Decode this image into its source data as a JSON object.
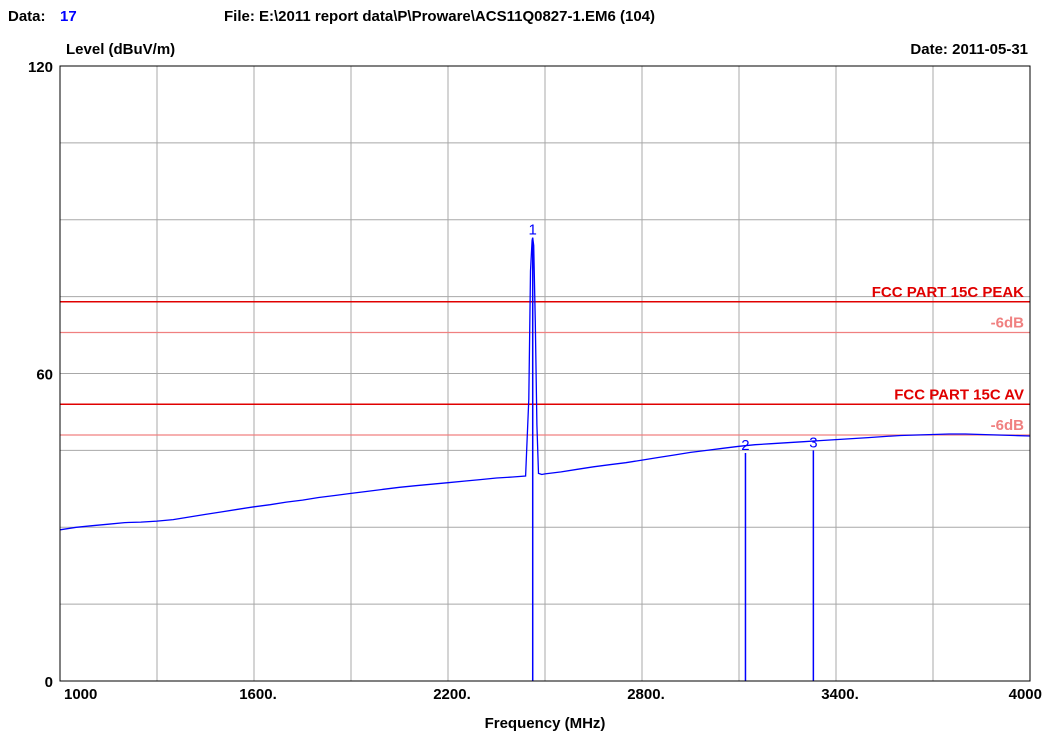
{
  "header": {
    "data_label": "Data:",
    "data_value": "17",
    "file_text": "File: E:\\2011 report data\\P\\Proware\\ACS11Q0827-1.EM6  (104)",
    "date_text": "Date: 2011-05-31"
  },
  "colors": {
    "trace": "#0000ff",
    "limit": "#e00000",
    "limit_margin": "#f08080",
    "grid": "#a8a8a8",
    "frame": "#000000"
  },
  "chart_data": {
    "type": "line",
    "title": "",
    "xlabel": "Frequency (MHz)",
    "ylabel": "Level (dBuV/m)",
    "xlim": [
      1000,
      4000
    ],
    "ylim": [
      0,
      120
    ],
    "grid": true,
    "x_ticks": [
      {
        "value": 1000,
        "label": "1000"
      },
      {
        "value": 1600,
        "label": "1600."
      },
      {
        "value": 2200,
        "label": "2200."
      },
      {
        "value": 2800,
        "label": "2800."
      },
      {
        "value": 3400,
        "label": "3400."
      },
      {
        "value": 4000,
        "label": "4000"
      }
    ],
    "y_ticks": [
      {
        "value": 0,
        "label": "0"
      },
      {
        "value": 60,
        "label": "60"
      },
      {
        "value": 120,
        "label": "120"
      }
    ],
    "limit_lines": [
      {
        "name": "FCC PART 15C  PEAK",
        "value": 74,
        "kind": "limit"
      },
      {
        "name": "-6dB",
        "value": 68,
        "kind": "margin"
      },
      {
        "name": "FCC PART 15C AV",
        "value": 54,
        "kind": "limit"
      },
      {
        "name": "-6dB",
        "value": 48,
        "kind": "margin"
      }
    ],
    "markers": [
      {
        "label": "1",
        "x": 2462,
        "y": 86.5
      },
      {
        "label": "2",
        "x": 3120,
        "y": 44.5
      },
      {
        "label": "3",
        "x": 3330,
        "y": 45
      }
    ],
    "series": [
      {
        "x": [
          1000,
          1050,
          1100,
          1150,
          1200,
          1250,
          1300,
          1350,
          1400,
          1450,
          1500,
          1550,
          1600,
          1650,
          1700,
          1750,
          1800,
          1850,
          1900,
          1950,
          2000,
          2050,
          2100,
          2150,
          2200,
          2250,
          2300,
          2350,
          2400,
          2440,
          2450,
          2455,
          2460,
          2462,
          2465,
          2470,
          2475,
          2480,
          2490,
          2500,
          2550,
          2600,
          2650,
          2700,
          2750,
          2800,
          2850,
          2900,
          2950,
          3000,
          3050,
          3100,
          3150,
          3200,
          3250,
          3300,
          3350,
          3400,
          3450,
          3500,
          3550,
          3600,
          3650,
          3700,
          3750,
          3800,
          3850,
          3900,
          3950,
          4000
        ],
        "y": [
          29.5,
          30.0,
          30.3,
          30.6,
          30.9,
          31.0,
          31.2,
          31.5,
          32.0,
          32.5,
          33.0,
          33.5,
          34.0,
          34.4,
          34.9,
          35.3,
          35.8,
          36.2,
          36.6,
          37.0,
          37.4,
          37.8,
          38.1,
          38.4,
          38.7,
          39.0,
          39.3,
          39.6,
          39.8,
          40.0,
          55.0,
          80.0,
          86.0,
          86.5,
          85.0,
          70.0,
          50.0,
          40.5,
          40.3,
          40.4,
          40.8,
          41.3,
          41.8,
          42.2,
          42.6,
          43.1,
          43.6,
          44.1,
          44.6,
          45.0,
          45.4,
          45.8,
          46.1,
          46.3,
          46.5,
          46.7,
          46.9,
          47.1,
          47.3,
          47.5,
          47.7,
          47.9,
          48.0,
          48.1,
          48.2,
          48.2,
          48.1,
          48.0,
          47.9,
          47.8
        ]
      }
    ]
  }
}
